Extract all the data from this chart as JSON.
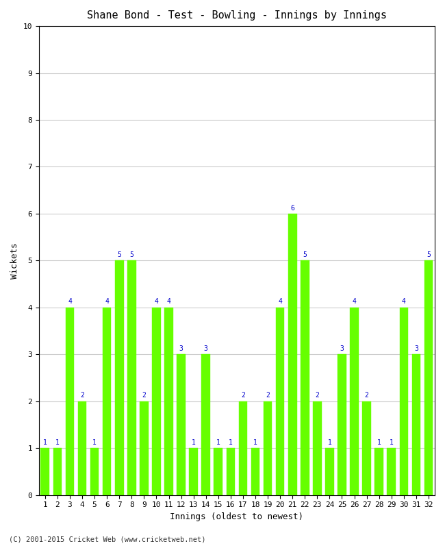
{
  "title": "Shane Bond - Test - Bowling - Innings by Innings",
  "xlabel": "Innings (oldest to newest)",
  "ylabel": "Wickets",
  "footer": "(C) 2001-2015 Cricket Web (www.cricketweb.net)",
  "innings": [
    1,
    2,
    3,
    4,
    5,
    6,
    7,
    8,
    9,
    10,
    11,
    12,
    13,
    14,
    15,
    16,
    17,
    18,
    19,
    20,
    21,
    22,
    23,
    24,
    25,
    26,
    27,
    28,
    29,
    30,
    31,
    32
  ],
  "wickets": [
    1,
    1,
    4,
    2,
    1,
    4,
    5,
    5,
    2,
    4,
    4,
    3,
    1,
    3,
    1,
    1,
    2,
    1,
    2,
    4,
    6,
    5,
    2,
    1,
    3,
    4,
    2,
    1,
    1,
    4,
    3,
    5
  ],
  "bar_color": "#66ff00",
  "bar_edge_color": "#66ff00",
  "label_color": "#0000cc",
  "background_color": "#ffffff",
  "plot_bg_color": "#ffffff",
  "ylim": [
    0,
    10
  ],
  "yticks": [
    0,
    1,
    2,
    3,
    4,
    5,
    6,
    7,
    8,
    9,
    10
  ],
  "title_fontsize": 11,
  "axis_label_fontsize": 9,
  "tick_fontsize": 8,
  "bar_label_fontsize": 7,
  "footer_fontsize": 7.5,
  "grid_color": "#cccccc",
  "spine_color": "#000000"
}
